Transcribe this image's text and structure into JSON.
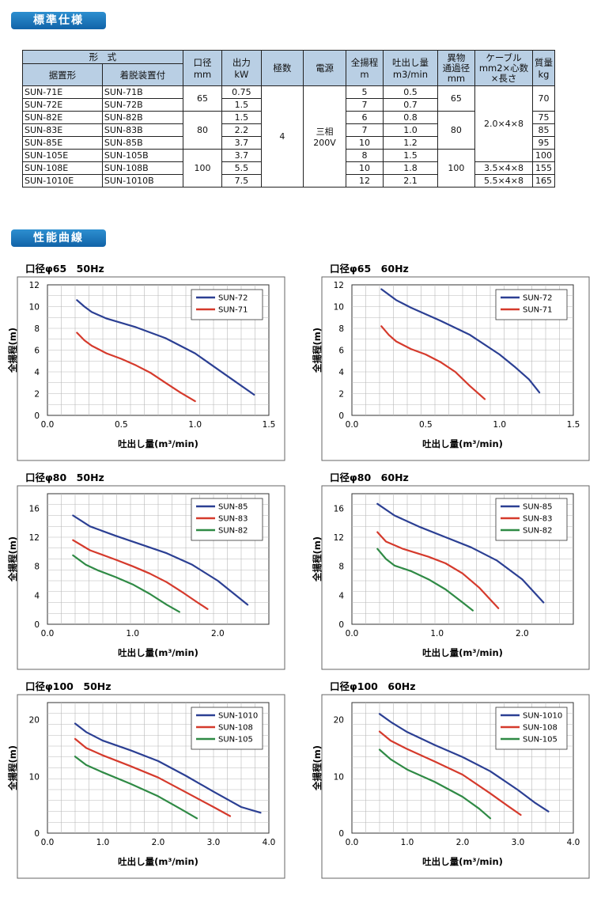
{
  "sections": {
    "spec_title": "標準仕様",
    "curve_title": "性能曲線"
  },
  "table": {
    "headers": {
      "model": "形　式",
      "floor": "据置形",
      "detach": "着脱装置付",
      "bore": "口径",
      "bore_unit": "mm",
      "output": "出力",
      "output_unit": "kW",
      "poles": "極数",
      "power": "電源",
      "head": "全揚程",
      "head_unit": "m",
      "flow": "吐出し量",
      "flow_unit": "m3/min",
      "solid": "異物\n通過径",
      "solid_unit": "mm",
      "cable": "ケーブル\nmm2×心数\n×長さ",
      "mass": "質量",
      "mass_unit": "kg"
    },
    "rows": [
      {
        "floor": "SUN-71E",
        "detach": "SUN-71B",
        "output": "0.75",
        "head": "5",
        "flow": "0.5",
        "mass": "70"
      },
      {
        "floor": "SUN-72E",
        "detach": "SUN-72B",
        "output": "1.5",
        "head": "7",
        "flow": "0.7"
      },
      {
        "floor": "SUN-82E",
        "detach": "SUN-82B",
        "output": "1.5",
        "head": "6",
        "flow": "0.8",
        "mass": "75"
      },
      {
        "floor": "SUN-83E",
        "detach": "SUN-83B",
        "output": "2.2",
        "head": "7",
        "flow": "1.0",
        "mass": "85"
      },
      {
        "floor": "SUN-85E",
        "detach": "SUN-85B",
        "output": "3.7",
        "head": "10",
        "flow": "1.2",
        "mass": "95"
      },
      {
        "floor": "SUN-105E",
        "detach": "SUN-105B",
        "output": "3.7",
        "head": "8",
        "flow": "1.5",
        "mass": "100"
      },
      {
        "floor": "SUN-108E",
        "detach": "SUN-108B",
        "output": "5.5",
        "head": "10",
        "flow": "1.8",
        "mass": "155"
      },
      {
        "floor": "SUN-1010E",
        "detach": "SUN-1010B",
        "output": "7.5",
        "head": "12",
        "flow": "2.1",
        "mass": "165"
      }
    ],
    "merged": {
      "bore_65": "65",
      "bore_80": "80",
      "bore_100": "100",
      "poles": "4",
      "power": "三相\n200V",
      "solid_65": "65",
      "solid_80": "80",
      "solid_100": "100",
      "cable_a": "2.0×4×8",
      "cable_b": "3.5×4×8",
      "cable_c": "5.5×4×8"
    }
  },
  "colors": {
    "blue": "#2b3f93",
    "red": "#d53a2c",
    "green": "#2f8a45",
    "header_bg": "#b9cfe4",
    "section_bg": "#1a72b8"
  },
  "chart_data": [
    {
      "type": "line",
      "title": "口径φ65　50Hz",
      "xlabel": "吐出し量(m³/min)",
      "ylabel": "全揚程(m)",
      "xlim": [
        0,
        1.5
      ],
      "ylim": [
        0,
        12
      ],
      "xticks": [
        "0.0",
        "0.5",
        "1.0",
        "1.5"
      ],
      "yticks": [
        "0",
        "2",
        "4",
        "6",
        "8",
        "10",
        "12"
      ],
      "grid": true,
      "legend": "top-right",
      "series": [
        {
          "name": "SUN-72",
          "color": "#2b3f93",
          "points": [
            [
              0.2,
              10.6
            ],
            [
              0.25,
              10.0
            ],
            [
              0.3,
              9.5
            ],
            [
              0.4,
              8.9
            ],
            [
              0.6,
              8.1
            ],
            [
              0.8,
              7.1
            ],
            [
              1.0,
              5.7
            ],
            [
              1.2,
              3.8
            ],
            [
              1.4,
              1.9
            ]
          ]
        },
        {
          "name": "SUN-71",
          "color": "#d53a2c",
          "points": [
            [
              0.2,
              7.6
            ],
            [
              0.25,
              6.9
            ],
            [
              0.3,
              6.4
            ],
            [
              0.4,
              5.7
            ],
            [
              0.5,
              5.2
            ],
            [
              0.6,
              4.6
            ],
            [
              0.7,
              3.9
            ],
            [
              0.8,
              3.0
            ],
            [
              0.9,
              2.1
            ],
            [
              1.0,
              1.3
            ]
          ]
        }
      ]
    },
    {
      "type": "line",
      "title": "口径φ65　60Hz",
      "xlabel": "吐出し量(m³/min)",
      "ylabel": "全揚程(m)",
      "xlim": [
        0,
        1.5
      ],
      "ylim": [
        0,
        12
      ],
      "xticks": [
        "0.0",
        "0.5",
        "1.0",
        "1.5"
      ],
      "yticks": [
        "0",
        "2",
        "4",
        "6",
        "8",
        "10",
        "12"
      ],
      "grid": true,
      "legend": "top-right",
      "series": [
        {
          "name": "SUN-72",
          "color": "#2b3f93",
          "points": [
            [
              0.2,
              11.6
            ],
            [
              0.3,
              10.6
            ],
            [
              0.4,
              9.9
            ],
            [
              0.6,
              8.7
            ],
            [
              0.8,
              7.4
            ],
            [
              1.0,
              5.6
            ],
            [
              1.1,
              4.5
            ],
            [
              1.2,
              3.3
            ],
            [
              1.27,
              2.1
            ]
          ]
        },
        {
          "name": "SUN-71",
          "color": "#d53a2c",
          "points": [
            [
              0.2,
              8.2
            ],
            [
              0.25,
              7.4
            ],
            [
              0.3,
              6.8
            ],
            [
              0.4,
              6.1
            ],
            [
              0.5,
              5.6
            ],
            [
              0.6,
              4.9
            ],
            [
              0.7,
              4.0
            ],
            [
              0.8,
              2.7
            ],
            [
              0.9,
              1.5
            ]
          ]
        }
      ]
    },
    {
      "type": "line",
      "title": "口径φ80　50Hz",
      "xlabel": "吐出し量(m³/min)",
      "ylabel": "全揚程(m)",
      "xlim": [
        0,
        2.6
      ],
      "ylim": [
        0,
        18
      ],
      "xticks": [
        "0.0",
        "1.0",
        "2.0"
      ],
      "yticks": [
        "0",
        "4",
        "8",
        "12",
        "16"
      ],
      "grid": true,
      "legend": "top-right",
      "series": [
        {
          "name": "SUN-85",
          "color": "#2b3f93",
          "points": [
            [
              0.3,
              15.0
            ],
            [
              0.5,
              13.5
            ],
            [
              0.8,
              12.2
            ],
            [
              1.1,
              11.0
            ],
            [
              1.4,
              9.8
            ],
            [
              1.7,
              8.2
            ],
            [
              2.0,
              6.0
            ],
            [
              2.35,
              2.7
            ]
          ]
        },
        {
          "name": "SUN-83",
          "color": "#d53a2c",
          "points": [
            [
              0.3,
              11.6
            ],
            [
              0.5,
              10.2
            ],
            [
              0.8,
              8.9
            ],
            [
              1.0,
              8.0
            ],
            [
              1.2,
              7.0
            ],
            [
              1.4,
              5.8
            ],
            [
              1.6,
              4.3
            ],
            [
              1.75,
              3.1
            ],
            [
              1.88,
              2.1
            ]
          ]
        },
        {
          "name": "SUN-82",
          "color": "#2f8a45",
          "points": [
            [
              0.3,
              9.5
            ],
            [
              0.45,
              8.2
            ],
            [
              0.6,
              7.4
            ],
            [
              0.8,
              6.5
            ],
            [
              1.0,
              5.5
            ],
            [
              1.2,
              4.2
            ],
            [
              1.4,
              2.7
            ],
            [
              1.55,
              1.7
            ]
          ]
        }
      ]
    },
    {
      "type": "line",
      "title": "口径φ80　60Hz",
      "xlabel": "吐出し量(m³/min)",
      "ylabel": "全揚程(m)",
      "xlim": [
        0,
        2.6
      ],
      "ylim": [
        0,
        18
      ],
      "xticks": [
        "0.0",
        "1.0",
        "2.0"
      ],
      "yticks": [
        "0",
        "4",
        "8",
        "12",
        "16"
      ],
      "grid": true,
      "legend": "top-right",
      "series": [
        {
          "name": "SUN-85",
          "color": "#2b3f93",
          "points": [
            [
              0.3,
              16.6
            ],
            [
              0.5,
              15.0
            ],
            [
              0.8,
              13.4
            ],
            [
              1.1,
              12.0
            ],
            [
              1.4,
              10.6
            ],
            [
              1.7,
              8.8
            ],
            [
              2.0,
              6.2
            ],
            [
              2.25,
              3.0
            ]
          ]
        },
        {
          "name": "SUN-83",
          "color": "#d53a2c",
          "points": [
            [
              0.3,
              12.7
            ],
            [
              0.4,
              11.4
            ],
            [
              0.6,
              10.4
            ],
            [
              0.9,
              9.3
            ],
            [
              1.1,
              8.4
            ],
            [
              1.3,
              7.0
            ],
            [
              1.5,
              5.0
            ],
            [
              1.72,
              2.2
            ]
          ]
        },
        {
          "name": "SUN-82",
          "color": "#2f8a45",
          "points": [
            [
              0.3,
              10.4
            ],
            [
              0.4,
              9.0
            ],
            [
              0.5,
              8.1
            ],
            [
              0.7,
              7.3
            ],
            [
              0.9,
              6.2
            ],
            [
              1.1,
              4.8
            ],
            [
              1.3,
              3.0
            ],
            [
              1.42,
              1.9
            ]
          ]
        }
      ]
    },
    {
      "type": "line",
      "title": "口径φ100　50Hz",
      "xlabel": "吐出し量(m³/min)",
      "ylabel": "全揚程(m)",
      "xlim": [
        0,
        4.0
      ],
      "ylim": [
        0,
        23
      ],
      "xticks": [
        "0.0",
        "1.0",
        "2.0",
        "3.0",
        "4.0"
      ],
      "yticks": [
        "0",
        "10",
        "20"
      ],
      "grid": true,
      "legend": "top-right",
      "series": [
        {
          "name": "SUN-1010",
          "color": "#2b3f93",
          "points": [
            [
              0.5,
              19.3
            ],
            [
              0.7,
              17.8
            ],
            [
              1.0,
              16.3
            ],
            [
              1.5,
              14.6
            ],
            [
              2.0,
              12.7
            ],
            [
              2.5,
              10.1
            ],
            [
              3.0,
              7.3
            ],
            [
              3.5,
              4.6
            ],
            [
              3.85,
              3.6
            ]
          ]
        },
        {
          "name": "SUN-108",
          "color": "#d53a2c",
          "points": [
            [
              0.5,
              16.6
            ],
            [
              0.7,
              15.0
            ],
            [
              1.0,
              13.7
            ],
            [
              1.5,
              11.8
            ],
            [
              2.0,
              9.8
            ],
            [
              2.5,
              7.2
            ],
            [
              3.0,
              4.6
            ],
            [
              3.3,
              3.0
            ]
          ]
        },
        {
          "name": "SUN-105",
          "color": "#2f8a45",
          "points": [
            [
              0.5,
              13.5
            ],
            [
              0.7,
              12.0
            ],
            [
              1.0,
              10.7
            ],
            [
              1.5,
              8.7
            ],
            [
              2.0,
              6.5
            ],
            [
              2.4,
              4.3
            ],
            [
              2.7,
              2.6
            ]
          ]
        }
      ]
    },
    {
      "type": "line",
      "title": "口径φ100　60Hz",
      "xlabel": "吐出し量(m³/min)",
      "ylabel": "全揚程(m)",
      "xlim": [
        0,
        4.0
      ],
      "ylim": [
        0,
        23
      ],
      "xticks": [
        "0.0",
        "1.0",
        "2.0",
        "3.0",
        "4.0"
      ],
      "yticks": [
        "0",
        "10",
        "20"
      ],
      "grid": true,
      "legend": "top-right",
      "series": [
        {
          "name": "SUN-1010",
          "color": "#2b3f93",
          "points": [
            [
              0.5,
              21.0
            ],
            [
              0.7,
              19.6
            ],
            [
              1.0,
              17.8
            ],
            [
              1.5,
              15.5
            ],
            [
              2.0,
              13.4
            ],
            [
              2.5,
              10.9
            ],
            [
              3.0,
              7.6
            ],
            [
              3.3,
              5.4
            ],
            [
              3.55,
              3.8
            ]
          ]
        },
        {
          "name": "SUN-108",
          "color": "#d53a2c",
          "points": [
            [
              0.5,
              17.9
            ],
            [
              0.7,
              16.3
            ],
            [
              1.0,
              14.8
            ],
            [
              1.5,
              12.6
            ],
            [
              2.0,
              10.3
            ],
            [
              2.5,
              7.0
            ],
            [
              2.8,
              4.9
            ],
            [
              3.05,
              3.2
            ]
          ]
        },
        {
          "name": "SUN-105",
          "color": "#2f8a45",
          "points": [
            [
              0.5,
              14.7
            ],
            [
              0.7,
              13.0
            ],
            [
              1.0,
              11.2
            ],
            [
              1.5,
              9.0
            ],
            [
              2.0,
              6.4
            ],
            [
              2.3,
              4.3
            ],
            [
              2.5,
              2.6
            ]
          ]
        }
      ]
    }
  ]
}
